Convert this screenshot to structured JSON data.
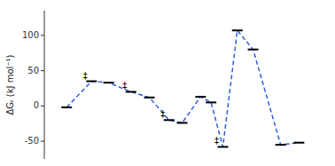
{
  "chart_data": {
    "type": "line",
    "y_label": "ΔGᵣ (kJ mol⁻¹)",
    "x": [
      0.55,
      1.5,
      2.15,
      3.0,
      3.7,
      4.45,
      4.95,
      5.65,
      6.05,
      6.5,
      7.05,
      7.65,
      8.7,
      9.4
    ],
    "series": [
      {
        "color": "#2255dd",
        "line_style": "dashed",
        "marker": "level",
        "values": [
          -2,
          35,
          33,
          20,
          12,
          -20,
          -24,
          13,
          5,
          -58,
          107,
          80,
          -55,
          -52
        ]
      }
    ],
    "xlim": [
      -0.3,
      10.5
    ],
    "ylim": [
      -75,
      135
    ],
    "yticks": [
      -50,
      0,
      50,
      100
    ],
    "tick_labels": "y",
    "grid": false,
    "annotations": [
      {
        "text": "‡",
        "x": 1.5,
        "y": 35
      },
      {
        "text": "‡",
        "x": 3.0,
        "y": 20
      },
      {
        "text": "‡",
        "x": 4.45,
        "y": -20
      },
      {
        "text": "‡",
        "x": 6.5,
        "y": -58
      }
    ]
  }
}
